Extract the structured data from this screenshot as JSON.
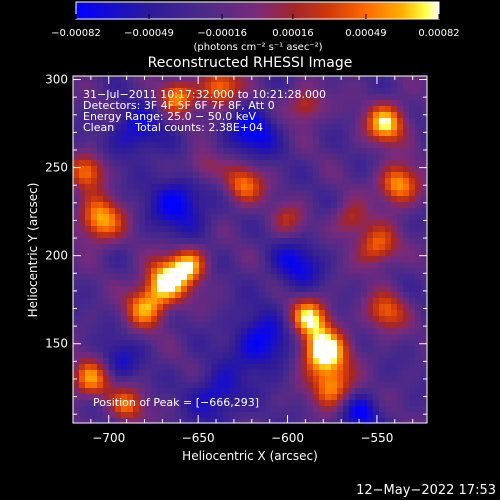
{
  "colors": {
    "background": "#000000",
    "foreground": "#ffffff",
    "colormap": [
      "#0000ff",
      "#2d1a9a",
      "#4b2a8a",
      "#7a2a7a",
      "#a3252a",
      "#d23a0a",
      "#ff6a00",
      "#ffb000",
      "#ffff40",
      "#ffffff"
    ]
  },
  "chart_data": {
    "type": "heatmap",
    "title": "Reconstructed RHESSI Image",
    "xlabel": "Heliocentric X (arcsec)",
    "ylabel": "Heliocentric Y (arcsec)",
    "xlim": [
      -720,
      -522
    ],
    "ylim": [
      105,
      302
    ],
    "x_ticks": [
      -700,
      -650,
      -600,
      -550
    ],
    "x_tick_labels": [
      "−700",
      "−650",
      "−600",
      "−550"
    ],
    "y_ticks": [
      150,
      200,
      250,
      300
    ],
    "y_tick_labels": [
      "150",
      "200",
      "250",
      "300"
    ],
    "colorbar": {
      "range": [
        -0.00082,
        0.00082
      ],
      "ticks": [
        -0.00082,
        -0.00049,
        -0.00016,
        0.00016,
        0.00049,
        0.00082
      ],
      "tick_labels": [
        "−0.00082",
        "−0.00049",
        "−0.00016",
        "0.00016",
        "0.00049",
        "0.00082"
      ],
      "label": "(photons cm⁻² s⁻¹ asec⁻²)"
    },
    "annotations": [
      "31−Jul−2011 10:17:32.000 to 10:21:28.000",
      "Detectors: 3F 4F 5F 6F 7F 8F, Att 0",
      "Energy Range: 25.0 − 50.0 keV",
      "Clean      Total counts: 2.38E+04"
    ],
    "peak_label": "Position of Peak = [−666,293]",
    "grid": false
  },
  "footer": {
    "timestamp": "12−May−2022 17:53"
  }
}
